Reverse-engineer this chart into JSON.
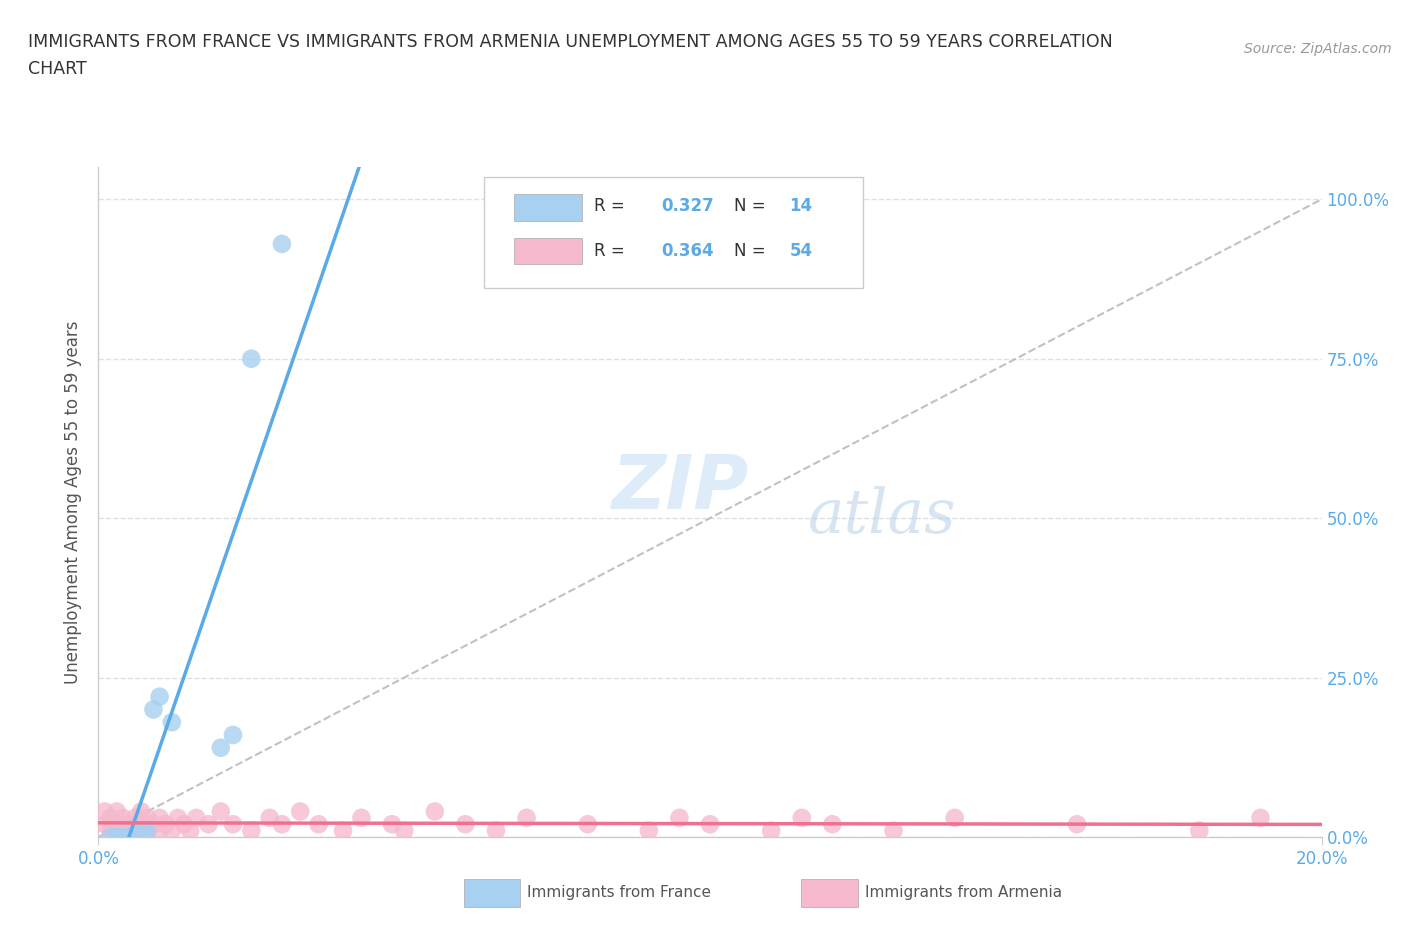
{
  "title_line1": "IMMIGRANTS FROM FRANCE VS IMMIGRANTS FROM ARMENIA UNEMPLOYMENT AMONG AGES 55 TO 59 YEARS CORRELATION",
  "title_line2": "CHART",
  "source_text": "Source: ZipAtlas.com",
  "ylabel": "Unemployment Among Ages 55 to 59 years",
  "xlim": [
    0.0,
    0.2
  ],
  "ylim": [
    0.0,
    1.05
  ],
  "ytick_values": [
    0.0,
    0.25,
    0.5,
    0.75,
    1.0
  ],
  "ytick_labels": [
    "0.0%",
    "25.0%",
    "50.0%",
    "75.0%",
    "100.0%"
  ],
  "france_color": "#a8d0f0",
  "armenia_color": "#f5b8cc",
  "france_line_color": "#5aaae8",
  "armenia_line_color": "#f07090",
  "R_france": 0.327,
  "N_france": 14,
  "R_armenia": 0.364,
  "N_armenia": 54,
  "legend_label_france": "Immigrants from France",
  "legend_label_armenia": "Immigrants from Armenia",
  "watermark_zip": "ZIP",
  "watermark_atlas": "atlas",
  "background_color": "#ffffff",
  "france_scatter_x": [
    0.002,
    0.003,
    0.004,
    0.005,
    0.006,
    0.007,
    0.008,
    0.009,
    0.01,
    0.012,
    0.02,
    0.022,
    0.025,
    0.03
  ],
  "france_scatter_y": [
    0.0,
    0.0,
    0.0,
    0.0,
    0.0,
    0.01,
    0.01,
    0.2,
    0.22,
    0.18,
    0.14,
    0.16,
    0.75,
    0.93
  ],
  "armenia_scatter_x": [
    0.001,
    0.001,
    0.002,
    0.002,
    0.003,
    0.003,
    0.003,
    0.004,
    0.004,
    0.005,
    0.005,
    0.006,
    0.006,
    0.007,
    0.007,
    0.008,
    0.008,
    0.009,
    0.01,
    0.01,
    0.011,
    0.012,
    0.013,
    0.014,
    0.015,
    0.016,
    0.018,
    0.02,
    0.022,
    0.025,
    0.028,
    0.03,
    0.033,
    0.036,
    0.04,
    0.043,
    0.048,
    0.05,
    0.055,
    0.06,
    0.065,
    0.07,
    0.08,
    0.09,
    0.095,
    0.1,
    0.11,
    0.115,
    0.12,
    0.13,
    0.14,
    0.16,
    0.18,
    0.19
  ],
  "armenia_scatter_y": [
    0.02,
    0.04,
    0.01,
    0.03,
    0.01,
    0.02,
    0.04,
    0.01,
    0.03,
    0.01,
    0.02,
    0.01,
    0.03,
    0.02,
    0.04,
    0.01,
    0.03,
    0.02,
    0.01,
    0.03,
    0.02,
    0.01,
    0.03,
    0.02,
    0.01,
    0.03,
    0.02,
    0.04,
    0.02,
    0.01,
    0.03,
    0.02,
    0.04,
    0.02,
    0.01,
    0.03,
    0.02,
    0.01,
    0.04,
    0.02,
    0.01,
    0.03,
    0.02,
    0.01,
    0.03,
    0.02,
    0.01,
    0.03,
    0.02,
    0.01,
    0.03,
    0.02,
    0.01,
    0.03
  ],
  "ref_line_color": "#bbbbbb",
  "grid_color": "#e0e0e0",
  "tick_color": "#5aaae8",
  "spine_color": "#cccccc"
}
